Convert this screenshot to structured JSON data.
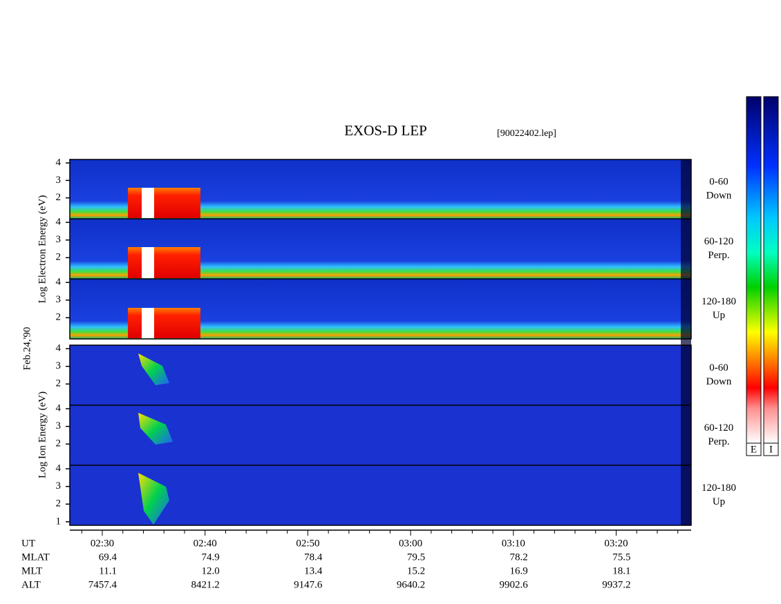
{
  "title": "EXOS-D LEP",
  "file": "[90022402.lep]",
  "date": "Feb.24,'90",
  "groups": [
    {
      "label": "Log Electron Energy (eV)",
      "panels": [
        {
          "angle": "0-60",
          "direction": "Down",
          "ylim": [
            0.8,
            4.2
          ],
          "yticks": [
            2,
            3,
            4
          ]
        },
        {
          "angle": "60-120",
          "direction": "Perp.",
          "ylim": [
            0.8,
            4.2
          ],
          "yticks": [
            2,
            3,
            4
          ]
        },
        {
          "angle": "120-180",
          "direction": "Up",
          "ylim": [
            0.8,
            4.2
          ],
          "yticks": [
            2,
            3,
            4
          ]
        }
      ]
    },
    {
      "label": "Log Ion Energy (eV)",
      "panels": [
        {
          "angle": "0-60",
          "direction": "Down",
          "ylim": [
            0.8,
            4.2
          ],
          "yticks": [
            2,
            3,
            4
          ]
        },
        {
          "angle": "60-120",
          "direction": "Perp.",
          "ylim": [
            0.8,
            4.2
          ],
          "yticks": [
            2,
            3,
            4
          ]
        },
        {
          "angle": "120-180",
          "direction": "Up",
          "ylim": [
            0.8,
            4.2
          ],
          "yticks": [
            1,
            2,
            3,
            4
          ]
        }
      ]
    }
  ],
  "time_ticks": [
    "02:30",
    "02:40",
    "02:50",
    "03:00",
    "03:10",
    "03:20"
  ],
  "table": {
    "rows": [
      {
        "label": "UT",
        "values": []
      },
      {
        "label": "MLAT",
        "values": [
          "69.4",
          "74.9",
          "78.4",
          "79.5",
          "78.2",
          "75.5"
        ]
      },
      {
        "label": "MLT",
        "values": [
          "11.1",
          "12.0",
          "13.4",
          "15.2",
          "16.9",
          "18.1"
        ]
      },
      {
        "label": "ALT",
        "values": [
          "7457.4",
          "8421.2",
          "9147.6",
          "9640.2",
          "9902.6",
          "9937.2"
        ]
      }
    ]
  },
  "colorbars": [
    "E",
    "I"
  ]
}
